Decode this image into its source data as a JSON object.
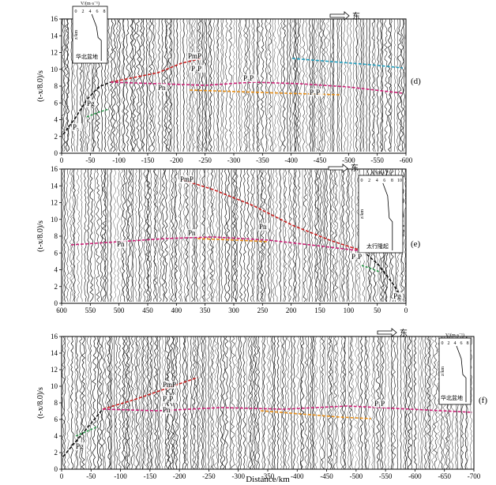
{
  "figure": {
    "direction_label": "东",
    "x_axis_label": "Distance/km",
    "y_axis_label_parts": [
      "(",
      "t",
      "-",
      "x",
      "8.0",
      ")",
      "/s"
    ],
    "inset_axis_label": "V/(m·s⁻¹)",
    "inset_depth_label": "z/km"
  },
  "panels": [
    {
      "id": "d",
      "tag": "(d)",
      "x_ticks": [
        "0",
        "-50",
        "-100",
        "-150",
        "-200",
        "-250",
        "-300",
        "-350",
        "-400",
        "-450",
        "-500",
        "-550",
        "-600"
      ],
      "y_ticks": [
        "16",
        "14",
        "12",
        "10",
        "8",
        "6",
        "4",
        "2",
        "0"
      ],
      "phase_labels": [
        {
          "text": "PmP",
          "kind": "plain"
        },
        {
          "text": "P₄P",
          "kind": "plain"
        },
        {
          "text": "P₃P",
          "kind": "plain"
        },
        {
          "text": "Pn",
          "kind": "plain"
        },
        {
          "text": "P₁P",
          "kind": "plain"
        },
        {
          "text": "Pg",
          "kind": "plain"
        },
        {
          "text": "P₅",
          "kind": "plain"
        }
      ],
      "inset": {
        "ticks": [
          "0",
          "2",
          "4",
          "6",
          "8"
        ],
        "depth_ticks": [
          "0",
          "20",
          "40",
          "60",
          "80"
        ],
        "region": "华北盆地"
      }
    },
    {
      "id": "e",
      "tag": "(e)",
      "x_ticks": [
        "600",
        "550",
        "500",
        "450",
        "400",
        "350",
        "300",
        "250",
        "200",
        "150",
        "100",
        "50",
        "0"
      ],
      "y_ticks": [
        "16",
        "14",
        "12",
        "10",
        "8",
        "6",
        "4",
        "2",
        "0"
      ],
      "phase_labels": [
        {
          "text": "PmP",
          "kind": "plain"
        },
        {
          "text": "Pn",
          "kind": "plain"
        },
        {
          "text": "Pn",
          "kind": "plain"
        },
        {
          "text": "Pn",
          "kind": "plain"
        },
        {
          "text": "P₂P",
          "kind": "plain"
        },
        {
          "text": "Pg",
          "kind": "plain"
        }
      ],
      "inset": {
        "ticks": [
          "0",
          "2",
          "4",
          "6",
          "8",
          "10"
        ],
        "depth_ticks": [
          "0",
          "20",
          "40",
          "60",
          "80"
        ],
        "region": "太行隆起"
      }
    },
    {
      "id": "f",
      "tag": "(f)",
      "x_ticks": [
        "0",
        "-50",
        "-100",
        "-150",
        "-200",
        "-250",
        "-300",
        "-350",
        "-400",
        "-450",
        "-500",
        "-550",
        "-600",
        "-650",
        "-700"
      ],
      "y_ticks": [
        "16",
        "14",
        "12",
        "10",
        "8",
        "6",
        "4",
        "2",
        "0"
      ],
      "phase_labels": [
        {
          "text": "PmP",
          "kind": "plain"
        },
        {
          "text": "P₄P",
          "kind": "plain"
        },
        {
          "text": "Pn",
          "kind": "plain"
        },
        {
          "text": "P₁P",
          "kind": "plain"
        },
        {
          "text": "Pg",
          "kind": "plain"
        }
      ],
      "inset": {
        "ticks": [
          "0",
          "2",
          "4",
          "6",
          "8"
        ],
        "depth_ticks": [
          "0",
          "20",
          "40",
          "60",
          "80"
        ],
        "region": "华北盆地"
      }
    }
  ],
  "colors": {
    "traces": "#1a1a1a",
    "pmp_pick": "#cc2222",
    "pn_pick": "#cc2277",
    "deep_pick": "#e8901a",
    "shallow_pick": "#22a0c0",
    "pg_pick": "#111111",
    "green_pick": "#2a9a4a"
  }
}
